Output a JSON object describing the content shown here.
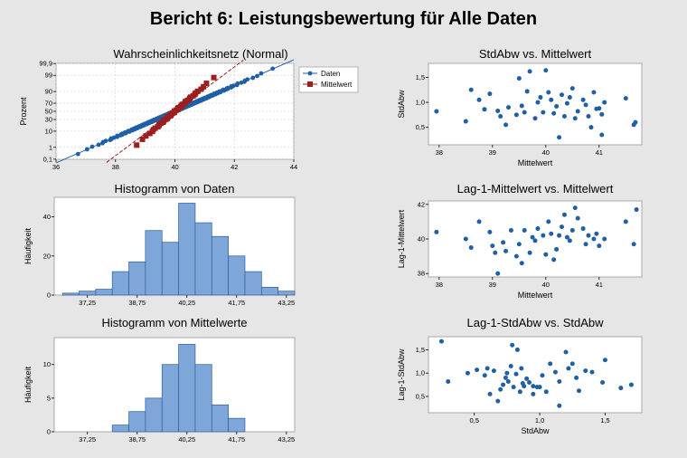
{
  "report_title": "Bericht 6: Leistungsbewertung für Alle Daten",
  "colors": {
    "blue": "#1f5fa6",
    "red": "#9c1f1f",
    "bar_fill": "#7ea6d8",
    "bar_stroke": "#2e5e9e"
  },
  "chart_data": [
    {
      "id": "probplot",
      "type": "scatter",
      "title": "Wahrscheinlichkeitsnetz (Normal)",
      "xlabel": "",
      "ylabel": "Prozent",
      "xlim": [
        36,
        44
      ],
      "xticks": [
        "36",
        "38",
        "40",
        "42",
        "44"
      ],
      "yticks_percent": [
        0.1,
        1,
        10,
        30,
        50,
        70,
        90,
        99,
        99.9
      ],
      "ytick_labels": [
        "0,1",
        "1",
        "10",
        "30",
        "50",
        "70",
        "90",
        "99",
        "99,9"
      ],
      "legend_position": "right",
      "series": [
        {
          "name": "Daten",
          "color": "#1f5fa6",
          "marker": "circle",
          "mean": 40.0,
          "sd": 1.2,
          "n": 240,
          "fit_line": [
            [
              36.0,
              -3.33
            ],
            [
              44.0,
              3.33
            ]
          ]
        },
        {
          "name": "Mittelwert",
          "color": "#9c1f1f",
          "marker": "square",
          "mean": 40.0,
          "sd": 0.6,
          "n": 48,
          "fit_line": [
            [
              37.7,
              -3.3
            ],
            [
              42.3,
              3.3
            ]
          ]
        }
      ]
    },
    {
      "id": "hist-daten",
      "type": "bar",
      "title": "Histogramm von Daten",
      "ylabel": "Häufigkeit",
      "xlabel": "",
      "bin_start": 36.5,
      "bin_width": 0.5,
      "values": [
        1,
        2,
        3,
        12,
        17,
        33,
        27,
        47,
        37,
        30,
        20,
        12,
        4,
        2
      ],
      "xlim": [
        36.25,
        43.5
      ],
      "xtick_values": [
        37.25,
        38.75,
        40.25,
        41.75,
        43.25
      ],
      "xtick_labels": [
        "37,25",
        "38,75",
        "40,25",
        "41,75",
        "43,25"
      ],
      "yticks": [
        0,
        20,
        40
      ],
      "ylim": [
        0,
        50
      ]
    },
    {
      "id": "hist-mittelwerte",
      "type": "bar",
      "title": "Histogramm von Mittelwerte",
      "ylabel": "Häufigkeit",
      "xlabel": "",
      "bin_start": 36.5,
      "bin_width": 0.5,
      "values": [
        0,
        0,
        0,
        1,
        3,
        5,
        10,
        13,
        10,
        4,
        2,
        0,
        0,
        0
      ],
      "xlim": [
        36.25,
        43.5
      ],
      "xtick_values": [
        37.25,
        38.75,
        40.25,
        41.75,
        43.25
      ],
      "xtick_labels": [
        "37,25",
        "38,75",
        "40,25",
        "41,75",
        "43,25"
      ],
      "yticks": [
        0,
        5,
        10
      ],
      "ylim": [
        0,
        14
      ]
    },
    {
      "id": "sd-vs-mean",
      "type": "scatter",
      "title": "StdAbw vs. Mittelwert",
      "xlabel": "Mittelwert",
      "ylabel": "StdAbw",
      "xlim": [
        37.8,
        41.8
      ],
      "ylim": [
        0.15,
        1.78
      ],
      "xticks": [
        38,
        39,
        40,
        41
      ],
      "xtick_labels": [
        "38",
        "39",
        "40",
        "41"
      ],
      "yticks": [
        0.5,
        1.0,
        1.5
      ],
      "ytick_labels": [
        "0,5",
        "1,0",
        "1,5"
      ],
      "points": [
        [
          37.95,
          0.82
        ],
        [
          38.5,
          0.62
        ],
        [
          38.6,
          1.25
        ],
        [
          38.75,
          1.05
        ],
        [
          38.85,
          0.86
        ],
        [
          38.95,
          1.17
        ],
        [
          39.1,
          0.83
        ],
        [
          39.15,
          0.72
        ],
        [
          39.25,
          0.55
        ],
        [
          39.3,
          0.9
        ],
        [
          39.45,
          0.75
        ],
        [
          39.5,
          1.48
        ],
        [
          39.55,
          0.93
        ],
        [
          39.6,
          0.8
        ],
        [
          39.65,
          1.22
        ],
        [
          39.7,
          1.62
        ],
        [
          39.8,
          0.68
        ],
        [
          39.85,
          1.0
        ],
        [
          39.9,
          1.1
        ],
        [
          39.95,
          0.8
        ],
        [
          40.0,
          1.64
        ],
        [
          40.05,
          1.2
        ],
        [
          40.1,
          1.05
        ],
        [
          40.15,
          0.78
        ],
        [
          40.2,
          0.92
        ],
        [
          40.25,
          0.3
        ],
        [
          40.3,
          1.15
        ],
        [
          40.35,
          0.72
        ],
        [
          40.4,
          0.98
        ],
        [
          40.45,
          1.1
        ],
        [
          40.5,
          1.28
        ],
        [
          40.55,
          0.68
        ],
        [
          40.6,
          0.82
        ],
        [
          40.7,
          1.05
        ],
        [
          40.75,
          0.95
        ],
        [
          40.8,
          0.72
        ],
        [
          40.9,
          1.2
        ],
        [
          40.95,
          0.87
        ],
        [
          41.0,
          0.88
        ],
        [
          41.05,
          0.76
        ],
        [
          41.1,
          1.0
        ],
        [
          41.5,
          1.08
        ],
        [
          41.65,
          0.55
        ],
        [
          41.68,
          0.6
        ],
        [
          40.85,
          0.5
        ],
        [
          41.05,
          0.35
        ]
      ]
    },
    {
      "id": "lag-mean",
      "type": "scatter",
      "title": "Lag-1-Mittelwert vs. Mittelwert",
      "xlabel": "Mittelwert",
      "ylabel": "Lag-1-Mittelwert",
      "xlim": [
        37.8,
        41.8
      ],
      "ylim": [
        37.8,
        42.2
      ],
      "xticks": [
        38,
        39,
        40,
        41
      ],
      "xtick_labels": [
        "38",
        "39",
        "40",
        "41"
      ],
      "yticks": [
        38,
        40,
        42
      ],
      "ytick_labels": [
        "38",
        "40",
        "42"
      ],
      "points": [
        [
          37.95,
          40.4
        ],
        [
          38.5,
          40.0
        ],
        [
          38.6,
          39.5
        ],
        [
          38.75,
          41.0
        ],
        [
          38.95,
          40.4
        ],
        [
          39.0,
          39.6
        ],
        [
          39.05,
          39.2
        ],
        [
          39.1,
          38.0
        ],
        [
          39.2,
          39.8
        ],
        [
          39.25,
          39.3
        ],
        [
          39.35,
          40.5
        ],
        [
          39.45,
          39.0
        ],
        [
          39.5,
          39.7
        ],
        [
          39.55,
          38.6
        ],
        [
          39.6,
          40.5
        ],
        [
          39.7,
          39.2
        ],
        [
          39.75,
          40.1
        ],
        [
          39.8,
          39.9
        ],
        [
          39.85,
          40.6
        ],
        [
          39.95,
          40.2
        ],
        [
          40.0,
          39.1
        ],
        [
          40.05,
          41.0
        ],
        [
          40.1,
          40.3
        ],
        [
          40.15,
          38.8
        ],
        [
          40.2,
          39.4
        ],
        [
          40.25,
          40.2
        ],
        [
          40.3,
          40.7
        ],
        [
          40.35,
          41.4
        ],
        [
          40.4,
          40.1
        ],
        [
          40.45,
          39.9
        ],
        [
          40.5,
          40.5
        ],
        [
          40.55,
          41.8
        ],
        [
          40.6,
          41.2
        ],
        [
          40.7,
          40.6
        ],
        [
          40.75,
          39.7
        ],
        [
          40.8,
          40.2
        ],
        [
          40.9,
          40.0
        ],
        [
          40.95,
          40.3
        ],
        [
          41.0,
          39.6
        ],
        [
          41.1,
          40.0
        ],
        [
          41.5,
          41.0
        ],
        [
          41.65,
          39.7
        ],
        [
          41.7,
          41.7
        ]
      ]
    },
    {
      "id": "lag-sd",
      "type": "scatter",
      "title": "Lag-1-StdAbw vs. StdAbw",
      "xlabel": "StdAbw",
      "ylabel": "Lag-1-StdAbw",
      "xlim": [
        0.15,
        1.78
      ],
      "ylim": [
        0.15,
        1.78
      ],
      "xticks": [
        0.5,
        1.0,
        1.5
      ],
      "xtick_labels": [
        "0,5",
        "1,0",
        "1,5"
      ],
      "yticks": [
        0.5,
        1.0,
        1.5
      ],
      "ytick_labels": [
        "0,5",
        "1,0",
        "1,5"
      ],
      "points": [
        [
          0.25,
          1.68
        ],
        [
          0.3,
          0.82
        ],
        [
          0.45,
          1.0
        ],
        [
          0.52,
          1.07
        ],
        [
          0.58,
          0.95
        ],
        [
          0.6,
          1.1
        ],
        [
          0.62,
          0.55
        ],
        [
          0.65,
          1.05
        ],
        [
          0.68,
          0.4
        ],
        [
          0.7,
          0.65
        ],
        [
          0.72,
          0.75
        ],
        [
          0.74,
          0.9
        ],
        [
          0.75,
          1.0
        ],
        [
          0.76,
          0.82
        ],
        [
          0.78,
          1.15
        ],
        [
          0.79,
          1.6
        ],
        [
          0.8,
          0.7
        ],
        [
          0.82,
          0.98
        ],
        [
          0.83,
          1.5
        ],
        [
          0.85,
          0.6
        ],
        [
          0.86,
          1.1
        ],
        [
          0.87,
          0.78
        ],
        [
          0.88,
          0.72
        ],
        [
          0.9,
          0.88
        ],
        [
          0.92,
          0.8
        ],
        [
          0.95,
          0.72
        ],
        [
          0.98,
          0.7
        ],
        [
          1.0,
          0.7
        ],
        [
          1.02,
          0.95
        ],
        [
          1.05,
          0.6
        ],
        [
          1.08,
          1.2
        ],
        [
          1.12,
          1.02
        ],
        [
          1.15,
          0.82
        ],
        [
          1.2,
          1.45
        ],
        [
          1.22,
          1.1
        ],
        [
          1.25,
          1.2
        ],
        [
          1.28,
          0.9
        ],
        [
          1.3,
          0.62
        ],
        [
          1.35,
          1.05
        ],
        [
          1.4,
          1.02
        ],
        [
          1.48,
          0.8
        ],
        [
          1.5,
          1.28
        ],
        [
          1.62,
          0.68
        ],
        [
          1.7,
          0.75
        ],
        [
          1.15,
          0.3
        ],
        [
          0.95,
          0.55
        ]
      ]
    }
  ]
}
